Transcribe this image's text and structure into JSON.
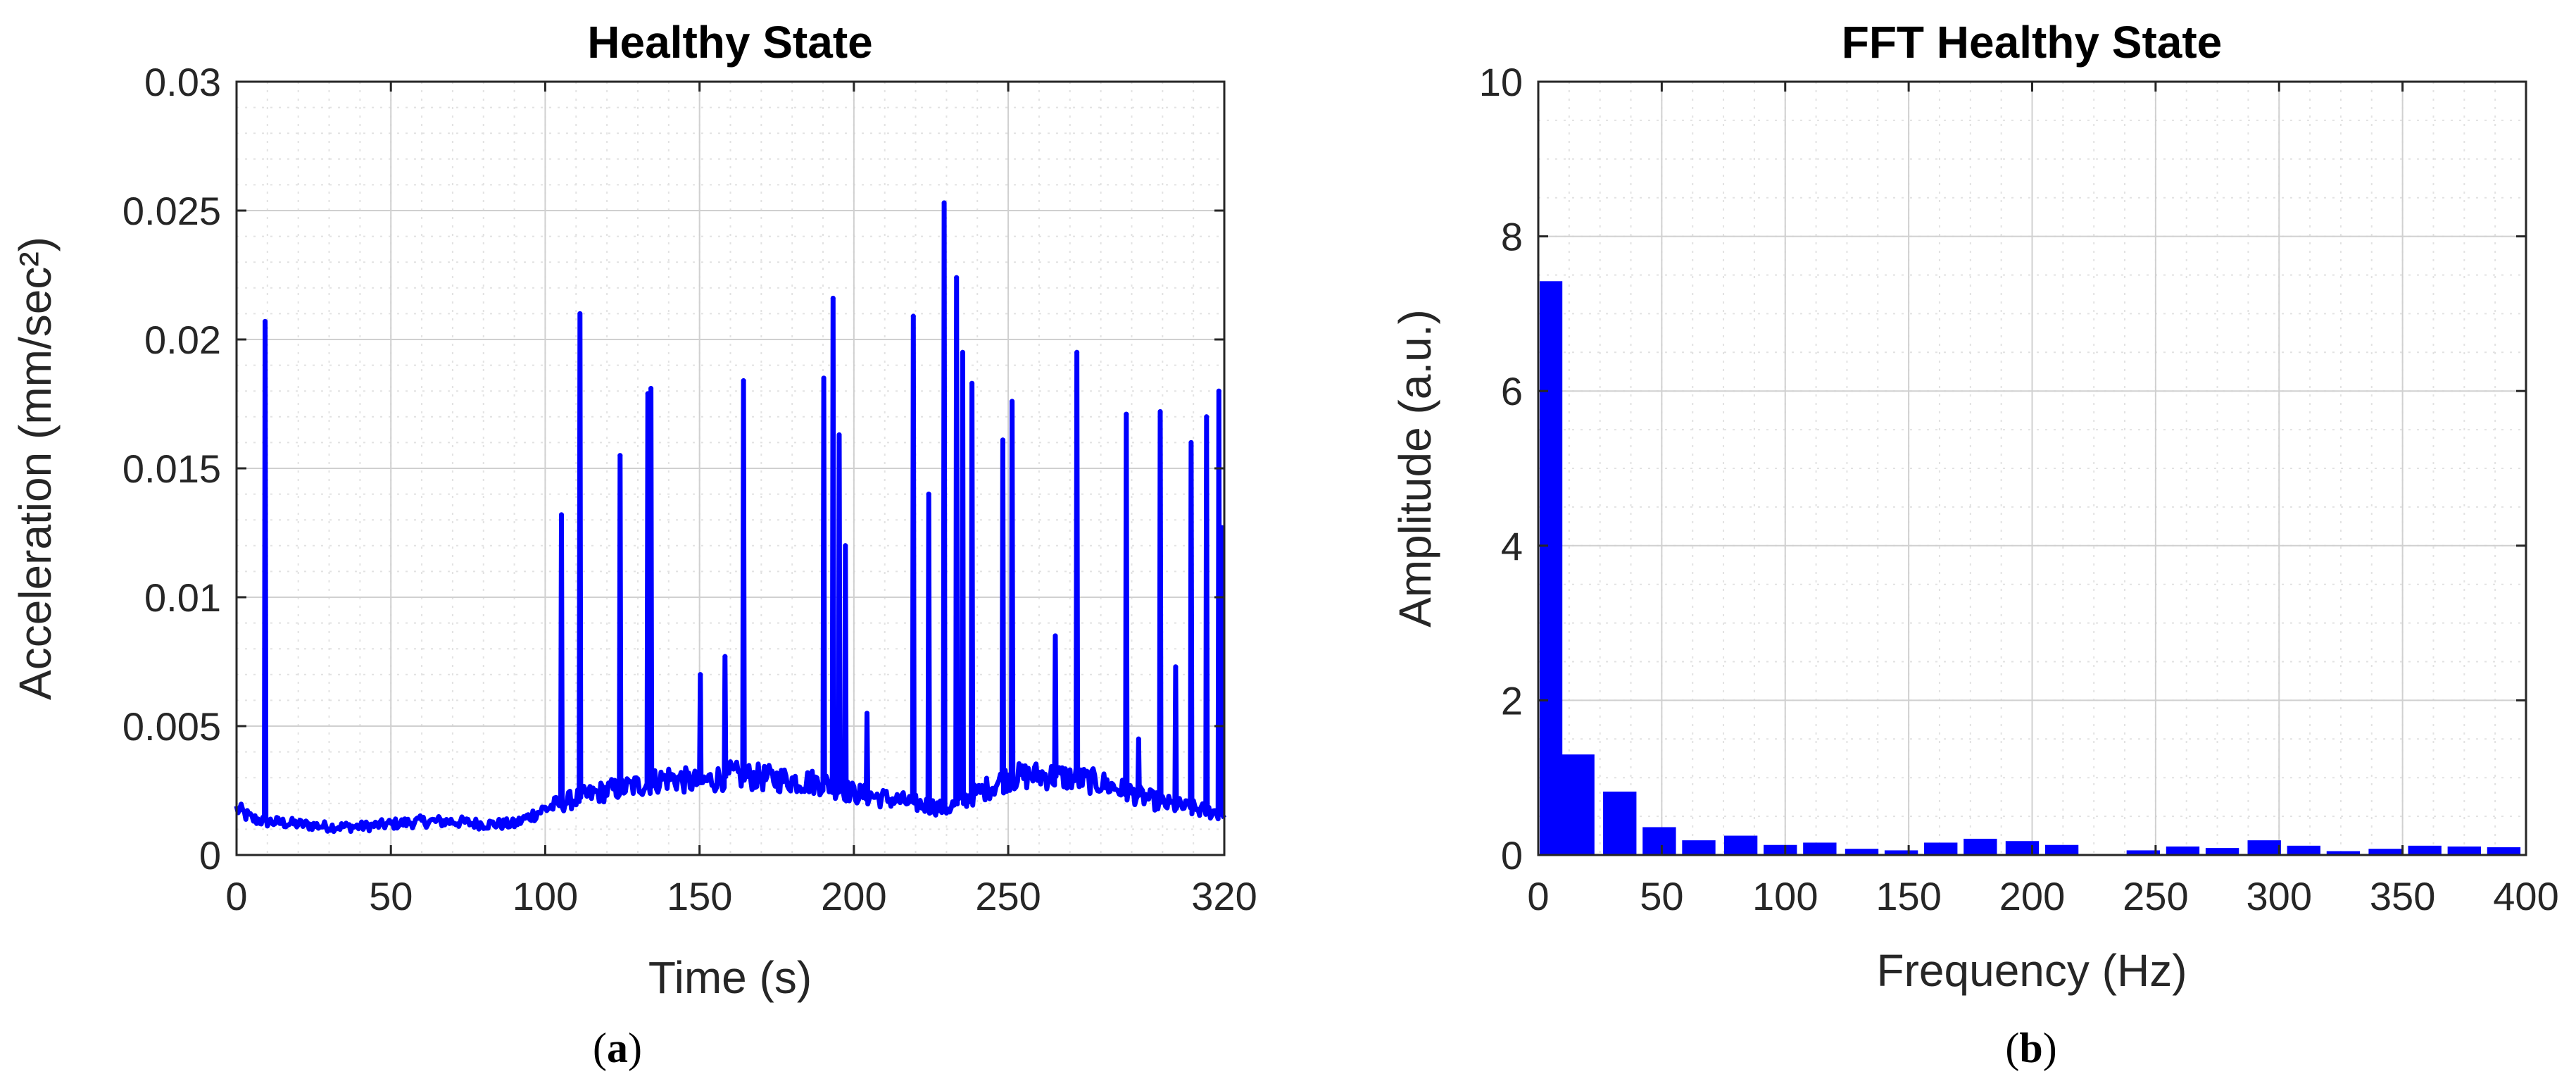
{
  "colors": {
    "series": "#0000ff",
    "axis": "#262626",
    "grid_major": "#d0d0d0",
    "grid_minor": "#e2e2e2"
  },
  "chart_data": [
    {
      "type": "line",
      "title": "Healthy State",
      "xlabel": "Time (s)",
      "ylabel": "Acceleration (mm/sec²)",
      "xlim": [
        0,
        320
      ],
      "ylim": [
        0,
        0.03
      ],
      "xticks": [
        0,
        50,
        100,
        150,
        200,
        250,
        320
      ],
      "xtick_labels": [
        "0",
        "50",
        "100",
        "150",
        "200",
        "250",
        "320"
      ],
      "yticks": [
        0,
        0.005,
        0.01,
        0.015,
        0.02,
        0.025,
        0.03
      ],
      "ytick_labels": [
        "0",
        "0.005",
        "0.01",
        "0.015",
        "0.02",
        "0.025",
        "0.03"
      ],
      "grid": "major and minor",
      "caption": "(a)",
      "series": [
        {
          "baseline": {
            "x": [
              0,
              5,
              10,
              20,
              30,
              40,
              50,
              60,
              70,
              80,
              90,
              100,
              110,
              120,
              130,
              140,
              150,
              160,
              170,
              180,
              190,
              200,
              210,
              220,
              230,
              240,
              250,
              260,
              270,
              280,
              290,
              300,
              310,
              320
            ],
            "y": [
              0.0018,
              0.0014,
              0.0013,
              0.0012,
              0.0011,
              0.0011,
              0.0012,
              0.0013,
              0.0013,
              0.0012,
              0.0012,
              0.0018,
              0.0022,
              0.0025,
              0.0027,
              0.003,
              0.0028,
              0.0031,
              0.003,
              0.0029,
              0.0028,
              0.0024,
              0.0022,
              0.002,
              0.0018,
              0.0024,
              0.003,
              0.0031,
              0.003,
              0.0028,
              0.0024,
              0.002,
              0.0018,
              0.0016
            ]
          },
          "spikes": {
            "x": [
              9,
              105,
              111,
              124,
              133,
              134,
              150,
              158,
              164,
              190,
              193,
              195,
              197,
              204,
              219,
              224,
              229,
              233,
              235,
              238,
              248,
              251,
              265,
              272,
              288,
              292,
              299,
              304,
              309,
              314,
              318,
              319
            ],
            "y": [
              0.0207,
              0.0132,
              0.021,
              0.0155,
              0.0179,
              0.0181,
              0.007,
              0.0077,
              0.0184,
              0.0185,
              0.0216,
              0.0163,
              0.012,
              0.0055,
              0.0209,
              0.014,
              0.0253,
              0.0224,
              0.0195,
              0.0183,
              0.0161,
              0.0176,
              0.0085,
              0.0195,
              0.0171,
              0.0045,
              0.0172,
              0.0073,
              0.016,
              0.017,
              0.018,
              0.0127
            ]
          }
        }
      ]
    },
    {
      "type": "bar",
      "title": "FFT Healthy State",
      "xlabel": "Frequency (Hz)",
      "ylabel": "Amplitude (a.u.)",
      "xlim": [
        0,
        400
      ],
      "ylim": [
        0,
        10
      ],
      "xticks": [
        0,
        50,
        100,
        150,
        200,
        250,
        300,
        350,
        400
      ],
      "xtick_labels": [
        "0",
        "50",
        "100",
        "150",
        "200",
        "250",
        "300",
        "350",
        "400"
      ],
      "yticks": [
        0,
        2,
        4,
        6,
        8,
        10
      ],
      "ytick_labels": [
        "0",
        "2",
        "4",
        "6",
        "8",
        "10"
      ],
      "grid": "major and minor",
      "caption": "(b)",
      "x": [
        3,
        16,
        33,
        49,
        65,
        82,
        98,
        114,
        131,
        147,
        163,
        179,
        196,
        212,
        245,
        261,
        277,
        294,
        310,
        326,
        343,
        359,
        375,
        391
      ],
      "values": [
        7.42,
        1.3,
        0.82,
        0.36,
        0.19,
        0.25,
        0.13,
        0.16,
        0.08,
        0.06,
        0.16,
        0.21,
        0.18,
        0.13,
        0.06,
        0.11,
        0.09,
        0.19,
        0.12,
        0.05,
        0.08,
        0.12,
        0.11,
        0.1
      ]
    }
  ]
}
